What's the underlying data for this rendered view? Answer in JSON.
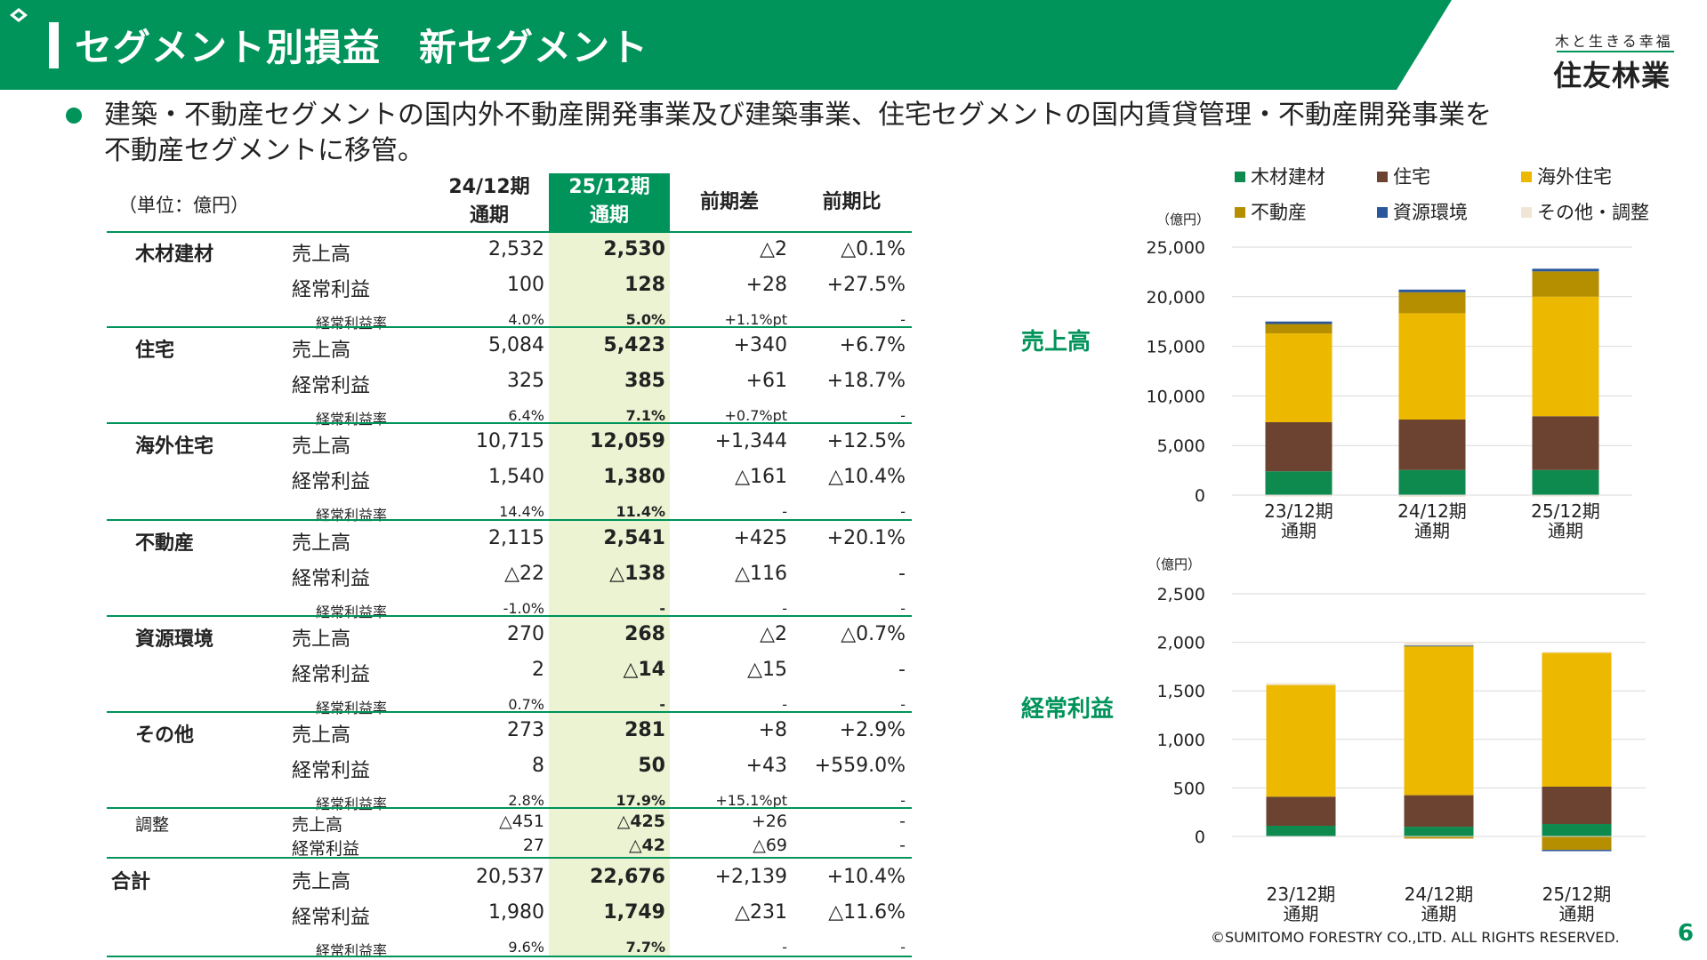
{
  "header": {
    "title": "セグメント別損益　新セグメント",
    "tagline": "木と生きる幸福",
    "logo_text": "住友林業"
  },
  "bullet": {
    "line1": "建築・不動産セグメントの国内外不動産開発事業及び建築事業、住宅セグメントの国内賃貸管理・不動産開発事業を",
    "line2": "不動産セグメントに移管。"
  },
  "table": {
    "unit": "（単位：億円）",
    "headers": {
      "prev_line1": "24/12期",
      "prev_line2": "通期",
      "curr_line1": "25/12期",
      "curr_line2": "通期",
      "diff": "前期差",
      "ratio": "前期比"
    },
    "rows": [
      {
        "segment": "木材建材",
        "label": "売上高",
        "prev": "2,532",
        "curr": "2,530",
        "diff": "△2",
        "ratio": "△0.1%"
      },
      {
        "segment": "",
        "label": "経常利益",
        "prev": "100",
        "curr": "128",
        "diff": "+28",
        "ratio": "+27.5%"
      },
      {
        "segment": "",
        "label": "経常利益率",
        "prev": "4.0%",
        "curr": "5.0%",
        "diff": "+1.1%pt",
        "ratio": "-"
      },
      {
        "segment": "住宅",
        "label": "売上高",
        "prev": "5,084",
        "curr": "5,423",
        "diff": "+340",
        "ratio": "+6.7%"
      },
      {
        "segment": "",
        "label": "経常利益",
        "prev": "325",
        "curr": "385",
        "diff": "+61",
        "ratio": "+18.7%"
      },
      {
        "segment": "",
        "label": "経常利益率",
        "prev": "6.4%",
        "curr": "7.1%",
        "diff": "+0.7%pt",
        "ratio": "-"
      },
      {
        "segment": "海外住宅",
        "label": "売上高",
        "prev": "10,715",
        "curr": "12,059",
        "diff": "+1,344",
        "ratio": "+12.5%"
      },
      {
        "segment": "",
        "label": "経常利益",
        "prev": "1,540",
        "curr": "1,380",
        "diff": "△161",
        "ratio": "△10.4%"
      },
      {
        "segment": "",
        "label": "経常利益率",
        "prev": "14.4%",
        "curr": "11.4%",
        "diff": "-",
        "ratio": "-"
      },
      {
        "segment": "不動産",
        "label": "売上高",
        "prev": "2,115",
        "curr": "2,541",
        "diff": "+425",
        "ratio": "+20.1%"
      },
      {
        "segment": "",
        "label": "経常利益",
        "prev": "△22",
        "curr": "△138",
        "diff": "△116",
        "ratio": "-"
      },
      {
        "segment": "",
        "label": "経常利益率",
        "prev": "-1.0%",
        "curr": "-",
        "diff": "-",
        "ratio": "-"
      },
      {
        "segment": "資源環境",
        "label": "売上高",
        "prev": "270",
        "curr": "268",
        "diff": "△2",
        "ratio": "△0.7%"
      },
      {
        "segment": "",
        "label": "経常利益",
        "prev": "2",
        "curr": "△14",
        "diff": "△15",
        "ratio": "-"
      },
      {
        "segment": "",
        "label": "経常利益率",
        "prev": "0.7%",
        "curr": "-",
        "diff": "-",
        "ratio": "-"
      },
      {
        "segment": "その他",
        "label": "売上高",
        "prev": "273",
        "curr": "281",
        "diff": "+8",
        "ratio": "+2.9%"
      },
      {
        "segment": "",
        "label": "経常利益",
        "prev": "8",
        "curr": "50",
        "diff": "+43",
        "ratio": "+559.0%"
      },
      {
        "segment": "",
        "label": "経常利益率",
        "prev": "2.8%",
        "curr": "17.9%",
        "diff": "+15.1%pt",
        "ratio": "-"
      },
      {
        "segment": "調整",
        "label": "売上高",
        "prev": "△451",
        "curr": "△425",
        "diff": "+26",
        "ratio": "-"
      },
      {
        "segment": "",
        "label": "経常利益",
        "prev": "27",
        "curr": "△42",
        "diff": "△69",
        "ratio": "-"
      },
      {
        "segment": "合計",
        "label": "売上高",
        "prev": "20,537",
        "curr": "22,676",
        "diff": "+2,139",
        "ratio": "+10.4%"
      },
      {
        "segment": "",
        "label": "経常利益",
        "prev": "1,980",
        "curr": "1,749",
        "diff": "△231",
        "ratio": "△11.6%"
      },
      {
        "segment": "",
        "label": "経常利益率",
        "prev": "9.6%",
        "curr": "7.7%",
        "diff": "-",
        "ratio": "-"
      }
    ]
  },
  "colors": {
    "brand_green": "#00935a",
    "highlight_col": "#ecf3d2",
    "wood": "#0e8a4f",
    "housing": "#6b4330",
    "overseas": "#ecb800",
    "realestate": "#b58f00",
    "resources": "#2a579c",
    "other": "#f1e6d6"
  },
  "legend": [
    "木材建材",
    "住宅",
    "海外住宅",
    "不動産",
    "資源環境",
    "その他・調整"
  ],
  "chart_data": [
    {
      "type": "bar",
      "stacked": true,
      "title": "売上高",
      "ylabel": "（億円）",
      "categories": [
        "23/12期\n通期",
        "24/12期\n通期",
        "25/12期\n通期"
      ],
      "ylim": [
        0,
        25000
      ],
      "yticks": [
        "0",
        "5,000",
        "10,000",
        "15,000",
        "20,000",
        "25,000"
      ],
      "grid": true,
      "series": [
        {
          "name": "木材建材",
          "values": [
            2400,
            2532,
            2530
          ]
        },
        {
          "name": "住宅",
          "values": [
            4950,
            5084,
            5423
          ]
        },
        {
          "name": "海外住宅",
          "values": [
            8950,
            10715,
            12059
          ]
        },
        {
          "name": "不動産",
          "values": [
            950,
            2115,
            2541
          ]
        },
        {
          "name": "資源環境",
          "values": [
            250,
            270,
            268
          ]
        },
        {
          "name": "その他・調整",
          "values": [
            -150,
            -178,
            -144
          ]
        }
      ]
    },
    {
      "type": "bar",
      "stacked": true,
      "title": "経常利益",
      "ylabel": "（億円）",
      "categories": [
        "23/12期\n通期",
        "24/12期\n通期",
        "25/12期\n通期"
      ],
      "ylim": [
        -100,
        2500
      ],
      "yticks": [
        "0",
        "500",
        "1,000",
        "1,500",
        "2,000",
        "2,500"
      ],
      "grid": true,
      "series": [
        {
          "name": "木材建材",
          "values": [
            110,
            100,
            128
          ]
        },
        {
          "name": "住宅",
          "values": [
            300,
            325,
            385
          ]
        },
        {
          "name": "海外住宅",
          "values": [
            1150,
            1540,
            1380
          ]
        },
        {
          "name": "不動産",
          "values": [
            0,
            -22,
            -138
          ]
        },
        {
          "name": "資源環境",
          "values": [
            0,
            2,
            -14
          ]
        },
        {
          "name": "その他・調整",
          "values": [
            20,
            35,
            8
          ]
        }
      ]
    }
  ],
  "chart_labels": {
    "sales": "売上高",
    "profit": "経常利益"
  },
  "footer": "©SUMITOMO FORESTRY CO.,LTD. ALL RIGHTS RESERVED.",
  "page_number": "6"
}
